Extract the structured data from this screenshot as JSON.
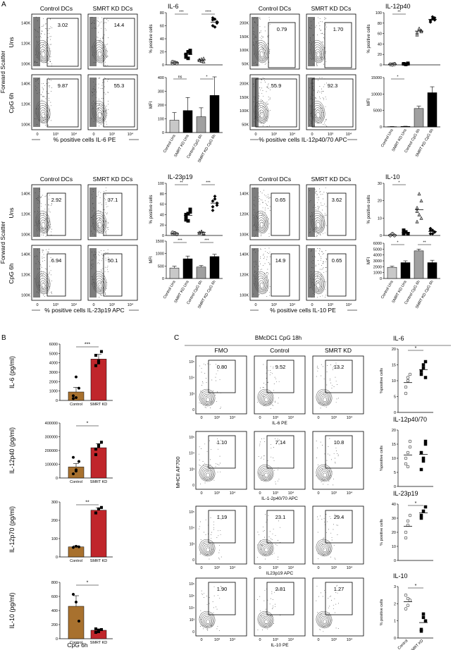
{
  "panel_letters": {
    "a": "A",
    "b": "B",
    "c": "C"
  },
  "a": {
    "dc_headers": [
      "Control DCs",
      "SMRT KD DCs"
    ],
    "y_axis_title": "Forward Scatter",
    "row_labels": [
      "Uns",
      "CpG 6h"
    ],
    "fsc_ticks": [
      "140K",
      "120K",
      "100K"
    ],
    "fsc_ticks_200": [
      "200K",
      "150K",
      "100K",
      "50K"
    ],
    "x_ticks": [
      "0",
      "10³",
      "10⁴"
    ],
    "blocks": [
      {
        "id": "il6",
        "x_axis_label": "% positive cells IL-6 PE",
        "gates": [
          "3.02",
          "14.4",
          "9.87",
          "55.3"
        ],
        "chart_top": {
          "title": "IL-6",
          "y_label": "% positive cells",
          "y_ticks": [
            "0",
            "20",
            "40",
            "60",
            "80"
          ],
          "sig": [
            "***",
            "****"
          ]
        },
        "chart_bottom": {
          "y_label": "MFI",
          "y_ticks": [
            "0",
            "100",
            "200",
            "300",
            "400"
          ],
          "sig": [
            "ns",
            "*"
          ]
        }
      },
      {
        "id": "il12",
        "x_axis_label": "% positive cells IL-12p40/70 APC",
        "gates": [
          "0.79",
          "1.70",
          "55.9",
          "92.3"
        ],
        "chart_top": {
          "title": "IL-12p40",
          "y_label": "% positive cells",
          "y_ticks": [
            "0",
            "20",
            "40",
            "60",
            "80",
            "100"
          ],
          "sig": [
            "**"
          ]
        },
        "chart_bottom": {
          "y_label": "MFI",
          "y_ticks": [
            "0",
            "5000",
            "10000",
            "15000"
          ],
          "sig": [
            "*"
          ]
        }
      },
      {
        "id": "il23",
        "x_axis_label": "% positive cells IL-23p19 APC",
        "gates": [
          "2.92",
          "37.1",
          "6.94",
          "50.1"
        ],
        "chart_top": {
          "title": "IL-23p19",
          "y_label": "% positive cells",
          "y_ticks": [
            "0",
            "20",
            "40",
            "60",
            "80",
            "100"
          ],
          "sig": [
            "**",
            "***"
          ]
        },
        "chart_bottom": {
          "y_label": "MFI",
          "y_ticks": [
            "0",
            "500",
            "1000",
            "1500"
          ],
          "sig": [
            "***",
            "***"
          ]
        }
      },
      {
        "id": "il10",
        "x_axis_label": "% positive cells IL-10 PE",
        "gates": [
          "0.65",
          "3.62",
          "14.9",
          "0.65"
        ],
        "chart_top": {
          "title": "IL-10",
          "y_label": "% positive cells",
          "y_ticks": [
            "0",
            "10",
            "20",
            "30"
          ],
          "sig": [
            "*"
          ]
        },
        "chart_bottom": {
          "y_label": "MFI",
          "y_ticks": [
            "0",
            "1000",
            "2000",
            "3000",
            "4000",
            "5000",
            "6000"
          ],
          "sig": [
            "*",
            "**"
          ]
        }
      }
    ],
    "categories": [
      "Control Uns",
      "SMRT KD Uns",
      "Control CpG 6h",
      "SMRT KD CpG 6h"
    ]
  },
  "b": {
    "x_title": "CpG 6h",
    "groups": [
      "Control",
      "SMRT KD"
    ],
    "colors": {
      "control": "#a8712e",
      "smrt": "#c0262b"
    },
    "panels": [
      {
        "y_label": "IL-6 (pg/ml)",
        "y_ticks": [
          "0",
          "1000",
          "2000",
          "3000",
          "4000",
          "5000",
          "6000"
        ],
        "sig": "***"
      },
      {
        "y_label": "IL-12p40 (pg/ml)",
        "y_ticks": [
          "0",
          "100000",
          "200000",
          "300000",
          "400000"
        ],
        "sig": "*"
      },
      {
        "y_label": "IL-12p70 (pg/ml)",
        "y_ticks": [
          "0",
          "100",
          "200",
          "300"
        ],
        "sig": "**"
      },
      {
        "y_label": "IL-10 (pg/ml)",
        "y_ticks": [
          "0",
          "200",
          "400",
          "600",
          "800"
        ],
        "sig": "*"
      }
    ]
  },
  "c": {
    "title": "BMcDC1 CpG 18h",
    "col_headers": [
      "FMO",
      "Control",
      "SMRT KD"
    ],
    "y_axis_title": "MHCII AF700",
    "y_ticks": [
      "10⁵",
      "10⁴",
      "10³",
      "0"
    ],
    "y_ticks_last": [
      "10⁶",
      "10⁵",
      "10⁴",
      "10³",
      "0"
    ],
    "x_ticks": [
      "0",
      "10³",
      "10⁴"
    ],
    "rows": [
      {
        "x_label": "IL-6 PE",
        "gates": [
          "0.80",
          "9.52",
          "13.2"
        ]
      },
      {
        "x_label": "IL-1-2p40/70 APC",
        "gates": [
          "1.10",
          "7.14",
          "10.8"
        ]
      },
      {
        "x_label": "IL23p19 APC",
        "gates": [
          "1.19",
          "23.1",
          "29.4"
        ]
      },
      {
        "x_label": "IL-10 PE",
        "gates": [
          "1.90",
          "2.81",
          "1.27"
        ]
      }
    ],
    "charts": [
      {
        "title": "IL-6",
        "y_label": "%positive cells",
        "y_ticks": [
          "20",
          "15",
          "10",
          "5",
          "0"
        ],
        "sig": "*"
      },
      {
        "title": "IL-12p40/70",
        "y_label": "%positive cells",
        "y_ticks": [
          "20",
          "15",
          "10",
          "5",
          "0"
        ],
        "sig": ""
      },
      {
        "title": "IL-23p19",
        "y_label": "% positive cells",
        "y_ticks": [
          "40",
          "30",
          "20",
          "10",
          "0"
        ],
        "sig": "*"
      },
      {
        "title": "IL-10",
        "y_label": "% positive cells",
        "y_ticks": [
          "3",
          "2",
          "1",
          "0"
        ],
        "sig": "*"
      }
    ],
    "x_categories": [
      "Control",
      "SMRT KD"
    ]
  },
  "chart_data": [
    {
      "type": "scatter",
      "id": "A-IL-6-percent",
      "title": "IL-6",
      "ylabel": "% positive cells",
      "ylim": [
        0,
        80
      ],
      "categories": [
        "Control Uns",
        "SMRT KD Uns",
        "Control CpG 6h",
        "SMRT KD CpG 6h"
      ],
      "series": [
        {
          "values": [
            [
              2,
              4,
              3,
              5,
              3,
              2
            ],
            [
              12,
              20,
              18,
              15,
              10,
              22,
              16
            ],
            [
              8,
              6,
              10,
              7,
              9,
              5
            ],
            [
              60,
              70,
              66,
              72,
              58,
              64,
              69
            ]
          ]
        }
      ]
    },
    {
      "type": "bar",
      "id": "A-IL-6-MFI",
      "ylabel": "MFI",
      "ylim": [
        0,
        400
      ],
      "categories": [
        "Control Uns",
        "SMRT KD Uns",
        "Control CpG 6h",
        "SMRT KD CpG 6h"
      ],
      "values": [
        90,
        160,
        115,
        270
      ],
      "errors": [
        55,
        95,
        65,
        135
      ]
    },
    {
      "type": "scatter",
      "id": "A-IL-12p40-percent",
      "title": "IL-12p40",
      "ylabel": "% positive cells",
      "ylim": [
        0,
        100
      ],
      "categories": [
        "Control Uns",
        "SMRT KD Uns",
        "Control CpG 6h",
        "SMRT KD CpG 6h"
      ],
      "series": [
        {
          "values": [
            [
              1,
              1,
              2,
              1,
              0,
              1
            ],
            [
              2,
              1,
              3,
              2,
              1,
              2
            ],
            [
              62,
              68,
              66,
              58,
              70,
              64
            ],
            [
              82,
              88,
              90,
              85,
              92,
              86
            ]
          ]
        }
      ]
    },
    {
      "type": "bar",
      "id": "A-IL-12p40-MFI",
      "ylabel": "MFI",
      "ylim": [
        0,
        15000
      ],
      "categories": [
        "Control Uns",
        "SMRT KD Uns",
        "Control CpG 6h",
        "SMRT KD CpG 6h"
      ],
      "values": [
        80,
        150,
        5600,
        10400
      ],
      "errors": [
        40,
        60,
        700,
        1800
      ]
    },
    {
      "type": "scatter",
      "id": "A-IL-23p19-percent",
      "title": "IL-23p19",
      "ylabel": "% positive cells",
      "ylim": [
        0,
        100
      ],
      "categories": [
        "Control Uns",
        "SMRT KD Uns",
        "Control CpG 6h",
        "SMRT KD CpG 6h"
      ],
      "series": [
        {
          "values": [
            [
              3,
              5,
              2,
              6,
              4,
              3
            ],
            [
              30,
              42,
              50,
              36,
              28,
              45,
              40
            ],
            [
              5,
              8,
              4,
              6,
              7,
              5
            ],
            [
              55,
              70,
              62,
              48,
              75,
              58,
              66
            ]
          ]
        }
      ]
    },
    {
      "type": "bar",
      "id": "A-IL-23p19-MFI",
      "ylabel": "MFI",
      "ylim": [
        0,
        1500
      ],
      "categories": [
        "Control Uns",
        "SMRT KD Uns",
        "Control CpG 6h",
        "SMRT KD CpG 6h"
      ],
      "values": [
        420,
        790,
        460,
        880
      ],
      "errors": [
        70,
        110,
        60,
        90
      ]
    },
    {
      "type": "scatter",
      "id": "A-IL-10-percent",
      "title": "IL-10",
      "ylabel": "% positive cells",
      "ylim": [
        0,
        30
      ],
      "categories": [
        "Control Uns",
        "SMRT KD Uns",
        "Control CpG 6h",
        "SMRT KD CpG 6h"
      ],
      "series": [
        {
          "values": [
            [
              0,
              1,
              0,
              0,
              1,
              0
            ],
            [
              1,
              2,
              1,
              3,
              2,
              1
            ],
            [
              8,
              12,
              20,
              14,
              24,
              10,
              16
            ],
            [
              1,
              3,
              2,
              4,
              1,
              2,
              3
            ]
          ]
        }
      ]
    },
    {
      "type": "bar",
      "id": "A-IL-10-MFI",
      "ylabel": "MFI",
      "ylim": [
        0,
        6000
      ],
      "categories": [
        "Control Uns",
        "SMRT KD Uns",
        "Control CpG 6h",
        "SMRT KD CpG 6h"
      ],
      "values": [
        1900,
        2700,
        4700,
        2700
      ],
      "errors": [
        200,
        300,
        300,
        400
      ]
    },
    {
      "type": "bar",
      "id": "B-IL-6",
      "ylabel": "IL-6 (pg/ml)",
      "ylim": [
        0,
        6000
      ],
      "categories": [
        "Control",
        "SMRT KD"
      ],
      "values": [
        900,
        4400
      ],
      "errors": [
        500,
        500
      ],
      "points": [
        [
          200,
          300,
          1300,
          500,
          2500
        ],
        [
          3700,
          4000,
          5200,
          4800,
          4200
        ]
      ]
    },
    {
      "type": "bar",
      "id": "B-IL-12p40",
      "ylabel": "IL-12p40 (pg/ml)",
      "ylim": [
        0,
        400000
      ],
      "categories": [
        "Control",
        "SMRT KD"
      ],
      "values": [
        80000,
        220000
      ],
      "errors": [
        25000,
        30000
      ],
      "points": [
        [
          30000,
          60000,
          120000,
          150000,
          50000
        ],
        [
          170000,
          230000,
          260000,
          210000,
          240000
        ]
      ]
    },
    {
      "type": "bar",
      "id": "B-IL-12p70",
      "ylabel": "IL-12p70 (pg/ml)",
      "ylim": [
        0,
        300
      ],
      "categories": [
        "Control",
        "SMRT KD"
      ],
      "values": [
        55,
        255
      ],
      "errors": [
        6,
        12
      ],
      "points": [
        [
          52,
          58,
          55
        ],
        [
          240,
          262,
          270
        ]
      ]
    },
    {
      "type": "bar",
      "id": "B-IL-10",
      "ylabel": "IL-10 (pg/ml)",
      "ylim": [
        0,
        800
      ],
      "categories": [
        "Control",
        "SMRT KD"
      ],
      "values": [
        460,
        120
      ],
      "errors": [
        150,
        20
      ],
      "points": [
        [
          630,
          520,
          250
        ],
        [
          90,
          120,
          130,
          140,
          100
        ]
      ]
    },
    {
      "type": "scatter",
      "id": "C-IL-6",
      "title": "IL-6",
      "ylabel": "%positive cells",
      "ylim": [
        0,
        20
      ],
      "categories": [
        "Control",
        "SMRT KD"
      ],
      "series": [
        {
          "values": [
            [
              8,
              10,
              12,
              6,
              11
            ],
            [
              12,
              14,
              16,
              13,
              15,
              11
            ]
          ]
        }
      ]
    },
    {
      "type": "scatter",
      "id": "C-IL-12p40/70",
      "title": "IL-12p40/70",
      "ylabel": "%positive cells",
      "ylim": [
        0,
        20
      ],
      "categories": [
        "Control",
        "SMRT KD"
      ],
      "series": [
        {
          "values": [
            [
              8,
              12,
              16,
              10,
              7,
              14
            ],
            [
              6,
              10,
              16,
              12,
              9,
              15
            ]
          ]
        }
      ]
    },
    {
      "type": "scatter",
      "id": "C-IL-23p19",
      "title": "IL-23p19",
      "ylabel": "% positive cells",
      "ylim": [
        0,
        40
      ],
      "categories": [
        "Control",
        "SMRT KD"
      ],
      "series": [
        {
          "values": [
            [
              20,
              28,
              32,
              16,
              25
            ],
            [
              32,
              35,
              38,
              30
            ]
          ]
        }
      ]
    },
    {
      "type": "scatter",
      "id": "C-IL-10",
      "title": "IL-10",
      "ylabel": "% positive cells",
      "ylim": [
        0,
        3
      ],
      "categories": [
        "Control",
        "SMRT KD"
      ],
      "series": [
        {
          "values": [
            [
              2.5,
              1.9,
              2.2,
              1.7,
              2.3
            ],
            [
              0.4,
              1.2,
              1.0,
              0.5,
              1.4
            ]
          ]
        }
      ]
    }
  ]
}
